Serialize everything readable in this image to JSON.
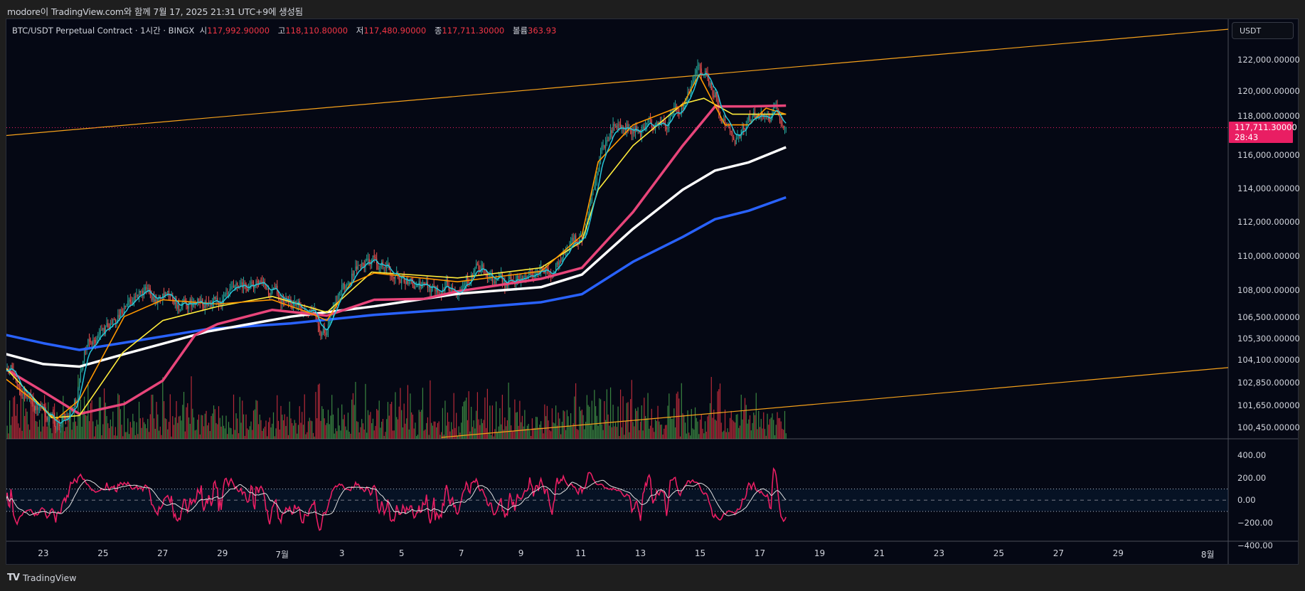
{
  "header": {
    "attribution": "modore이 TradingView.com와 함께 7월 17, 2025 21:31 UTC+9에 생성됨"
  },
  "legend": {
    "symbol": "BTC/USDT Perpetual Contract · 1시간 · BINGX",
    "open_label": "시",
    "open": "117,992.90000",
    "high_label": "고",
    "high": "118,110.80000",
    "low_label": "저",
    "low": "117,480.90000",
    "close_label": "종",
    "close": "117,711.30000",
    "volume_label": "볼륨",
    "volume": "363.93"
  },
  "price_axis": {
    "currency": "USDT",
    "current_price": "117,711.30000",
    "countdown": "28:43"
  },
  "footer": {
    "logo": "TV",
    "brand": "TradingView"
  },
  "colors": {
    "background": "#050814",
    "up": "#26a69a",
    "down": "#ef5350",
    "last_price": "#e91e63",
    "trendline": "#f7a21b"
  },
  "chart_data": {
    "type": "candlestick",
    "timeframe": "1시간",
    "price_scale": "log",
    "last_price": 117711.3,
    "price_ticks": [
      {
        "value": 122000,
        "label": "122,000.00000"
      },
      {
        "value": 120000,
        "label": "120,000.00000"
      },
      {
        "value": 118000,
        "label": "118,000.00000"
      },
      {
        "value": 116000,
        "label": "116,000.00000"
      },
      {
        "value": 114000,
        "label": "114,000.00000"
      },
      {
        "value": 112000,
        "label": "112,000.00000"
      },
      {
        "value": 110000,
        "label": "110,000.00000"
      },
      {
        "value": 108000,
        "label": "108,000.00000"
      },
      {
        "value": 106500,
        "label": "106,500.00000"
      },
      {
        "value": 105300,
        "label": "105,300.00000"
      },
      {
        "value": 104100,
        "label": "104,100.00000"
      },
      {
        "value": 102850,
        "label": "102,850.00000"
      },
      {
        "value": 101650,
        "label": "101,650.00000"
      },
      {
        "value": 100450,
        "label": "100,450.00000"
      }
    ],
    "time_ticks": [
      {
        "date": "2025-06-23",
        "label": "23"
      },
      {
        "date": "2025-06-25",
        "label": "25"
      },
      {
        "date": "2025-06-27",
        "label": "27"
      },
      {
        "date": "2025-06-29",
        "label": "29"
      },
      {
        "date": "2025-07-01",
        "label": "7월"
      },
      {
        "date": "2025-07-03",
        "label": "3"
      },
      {
        "date": "2025-07-05",
        "label": "5"
      },
      {
        "date": "2025-07-07",
        "label": "7"
      },
      {
        "date": "2025-07-09",
        "label": "9"
      },
      {
        "date": "2025-07-11",
        "label": "11"
      },
      {
        "date": "2025-07-13",
        "label": "13"
      },
      {
        "date": "2025-07-15",
        "label": "15"
      },
      {
        "date": "2025-07-17",
        "label": "17"
      },
      {
        "date": "2025-07-19",
        "label": "19"
      },
      {
        "date": "2025-07-21",
        "label": "21"
      },
      {
        "date": "2025-07-23",
        "label": "23"
      },
      {
        "date": "2025-07-25",
        "label": "25"
      },
      {
        "date": "2025-07-27",
        "label": "27"
      },
      {
        "date": "2025-07-29",
        "label": "29"
      },
      {
        "date": "2025-08-01",
        "label": "8월"
      }
    ],
    "price_path": [
      [
        "2025-06-21T18:00",
        103800
      ],
      [
        "2025-06-22T10:00",
        102400
      ],
      [
        "2025-06-23T00:00",
        101100
      ],
      [
        "2025-06-23T10:00",
        100400
      ],
      [
        "2025-06-24T02:00",
        101900
      ],
      [
        "2025-06-24T09:00",
        104700
      ],
      [
        "2025-06-25T05:00",
        106000
      ],
      [
        "2025-06-26T00:00",
        107700
      ],
      [
        "2025-06-26T14:00",
        107900
      ],
      [
        "2025-06-27T17:00",
        107000
      ],
      [
        "2025-06-28T22:00",
        107300
      ],
      [
        "2025-06-30T00:00",
        108200
      ],
      [
        "2025-07-01T02:00",
        107500
      ],
      [
        "2025-07-02T00:00",
        106800
      ],
      [
        "2025-07-02T10:00",
        105800
      ],
      [
        "2025-07-02T19:00",
        107000
      ],
      [
        "2025-07-03T10:00",
        109400
      ],
      [
        "2025-07-04T02:00",
        109700
      ],
      [
        "2025-07-04T19:00",
        108900
      ],
      [
        "2025-07-05T15:00",
        108200
      ],
      [
        "2025-07-06T18:00",
        108400
      ],
      [
        "2025-07-07T14:00",
        109200
      ],
      [
        "2025-07-08T10:00",
        108200
      ],
      [
        "2025-07-09T00:00",
        108900
      ],
      [
        "2025-07-10T02:00",
        109200
      ],
      [
        "2025-07-10T16:00",
        110900
      ],
      [
        "2025-07-11T04:00",
        111400
      ],
      [
        "2025-07-11T17:00",
        116300
      ],
      [
        "2025-07-12T03:00",
        117900
      ],
      [
        "2025-07-12T22:00",
        117600
      ],
      [
        "2025-07-13T19:00",
        117900
      ],
      [
        "2025-07-14T12:00",
        118900
      ],
      [
        "2025-07-14T22:00",
        122100
      ],
      [
        "2025-07-15T05:00",
        121000
      ],
      [
        "2025-07-15T12:00",
        120000
      ],
      [
        "2025-07-15T20:00",
        117900
      ],
      [
        "2025-07-16T06:00",
        117100
      ],
      [
        "2025-07-16T15:00",
        117900
      ],
      [
        "2025-07-17T05:00",
        118900
      ],
      [
        "2025-07-17T15:00",
        118600
      ],
      [
        "2025-07-17T21:00",
        117711.3
      ]
    ],
    "moving_averages": [
      {
        "color": "#2962ff",
        "points": [
          [
            "2025-06-21T18:00",
            105490
          ],
          [
            "2025-06-23T00:00",
            105030
          ],
          [
            "2025-06-24T05:00",
            104660
          ],
          [
            "2025-06-25T17:00",
            105060
          ],
          [
            "2025-06-28T12:00",
            105820
          ],
          [
            "2025-07-01T07:00",
            106140
          ],
          [
            "2025-07-04T02:00",
            106620
          ],
          [
            "2025-07-06T21:00",
            106950
          ],
          [
            "2025-07-09T16:00",
            107330
          ],
          [
            "2025-07-11T01:00",
            107790
          ],
          [
            "2025-07-12T18:00",
            109650
          ],
          [
            "2025-07-14T10:00",
            111100
          ],
          [
            "2025-07-15T12:00",
            112150
          ],
          [
            "2025-07-16T15:00",
            112650
          ],
          [
            "2025-07-17T21:00",
            113450
          ]
        ]
      },
      {
        "color": "#ffffff",
        "points": [
          [
            "2025-06-21T18:00",
            104430
          ],
          [
            "2025-06-23T00:00",
            103880
          ],
          [
            "2025-06-24T05:00",
            103740
          ],
          [
            "2025-06-25T17:00",
            104430
          ],
          [
            "2025-06-28T12:00",
            105680
          ],
          [
            "2025-07-01T07:00",
            106520
          ],
          [
            "2025-07-04T02:00",
            107100
          ],
          [
            "2025-07-06T21:00",
            107810
          ],
          [
            "2025-07-09T16:00",
            108190
          ],
          [
            "2025-07-11T01:00",
            108910
          ],
          [
            "2025-07-12T18:00",
            111580
          ],
          [
            "2025-07-14T10:00",
            113910
          ],
          [
            "2025-07-15T12:00",
            115070
          ],
          [
            "2025-07-16T15:00",
            115570
          ],
          [
            "2025-07-17T21:00",
            116500
          ]
        ]
      },
      {
        "color": "#e8457a",
        "points": [
          [
            "2025-06-21T18:00",
            103600
          ],
          [
            "2025-06-23T00:00",
            102380
          ],
          [
            "2025-06-24T05:00",
            101180
          ],
          [
            "2025-06-25T17:00",
            101710
          ],
          [
            "2025-06-27T00:00",
            102970
          ],
          [
            "2025-06-28T02:00",
            105490
          ],
          [
            "2025-06-28T20:00",
            106100
          ],
          [
            "2025-06-30T16:00",
            106900
          ],
          [
            "2025-07-02T12:00",
            106570
          ],
          [
            "2025-07-04T02:00",
            107470
          ],
          [
            "2025-07-05T18:00",
            107520
          ],
          [
            "2025-07-06T21:00",
            107950
          ],
          [
            "2025-07-09T16:00",
            108670
          ],
          [
            "2025-07-11T01:00",
            109300
          ],
          [
            "2025-07-12T18:00",
            112570
          ],
          [
            "2025-07-14T10:00",
            116600
          ],
          [
            "2025-07-15T12:00",
            119040
          ],
          [
            "2025-07-16T15:00",
            119040
          ],
          [
            "2025-07-17T21:00",
            119090
          ]
        ]
      },
      {
        "color": "#ffeb3b",
        "points": [
          [
            "2025-06-21T18:00",
            103650
          ],
          [
            "2025-06-23T07:00",
            100970
          ],
          [
            "2025-06-24T05:00",
            101090
          ],
          [
            "2025-06-25T16:00",
            104520
          ],
          [
            "2025-06-27T00:00",
            106300
          ],
          [
            "2025-06-28T20:00",
            107090
          ],
          [
            "2025-06-30T16:00",
            107660
          ],
          [
            "2025-07-02T12:00",
            106760
          ],
          [
            "2025-07-04T00:00",
            109060
          ],
          [
            "2025-07-06T21:00",
            108720
          ],
          [
            "2025-07-09T16:00",
            109300
          ],
          [
            "2025-07-11T01:00",
            110850
          ],
          [
            "2025-07-11T14:00",
            113910
          ],
          [
            "2025-07-12T18:00",
            116600
          ],
          [
            "2025-07-14T10:00",
            119200
          ],
          [
            "2025-07-15T03:00",
            119550
          ],
          [
            "2025-07-16T02:00",
            118550
          ],
          [
            "2025-07-17T21:00",
            118550
          ]
        ]
      },
      {
        "color": "#ff9800",
        "points": [
          [
            "2025-06-21T18:00",
            103060
          ],
          [
            "2025-06-23T00:00",
            101500
          ],
          [
            "2025-06-23T10:00",
            100870
          ],
          [
            "2025-06-24T05:00",
            101930
          ],
          [
            "2025-06-25T17:00",
            106520
          ],
          [
            "2025-06-27T00:00",
            107470
          ],
          [
            "2025-06-28T20:00",
            107230
          ],
          [
            "2025-06-30T16:00",
            107470
          ],
          [
            "2025-07-01T21:00",
            106760
          ],
          [
            "2025-07-02T12:00",
            106300
          ],
          [
            "2025-07-03T07:00",
            108400
          ],
          [
            "2025-07-04T02:00",
            109000
          ],
          [
            "2025-07-06T21:00",
            108500
          ],
          [
            "2025-07-09T16:00",
            109100
          ],
          [
            "2025-07-11T01:00",
            111200
          ],
          [
            "2025-07-11T14:00",
            115600
          ],
          [
            "2025-07-12T18:00",
            117880
          ],
          [
            "2025-07-14T10:00",
            119100
          ],
          [
            "2025-07-14T23:00",
            121040
          ],
          [
            "2025-07-15T20:00",
            117880
          ],
          [
            "2025-07-16T15:00",
            117880
          ],
          [
            "2025-07-17T05:00",
            118930
          ],
          [
            "2025-07-17T21:00",
            118550
          ]
        ]
      }
    ],
    "trendlines": [
      {
        "color": "#f7a21b",
        "from": [
          "2025-06-21T18:00",
          117220
        ],
        "to": [
          "2025-08-01T17:00",
          124000
        ]
      },
      {
        "color": "#f7a21b",
        "from": [
          "2025-07-06T08:00",
          99930
        ],
        "to": [
          "2025-08-01T17:00",
          103690
        ]
      }
    ],
    "oscillator": {
      "range": [
        -400,
        400
      ],
      "bands": [
        100,
        -100
      ],
      "ticks": [
        {
          "value": 400,
          "label": "400.00"
        },
        {
          "value": 200,
          "label": "200.00"
        },
        {
          "value": 0,
          "label": "0.00"
        },
        {
          "value": -200,
          "label": "−200.00"
        },
        {
          "value": -400,
          "label": "−400.00"
        }
      ],
      "colors": {
        "main": "#e91e63",
        "signal": "#e0e0e0"
      }
    }
  }
}
